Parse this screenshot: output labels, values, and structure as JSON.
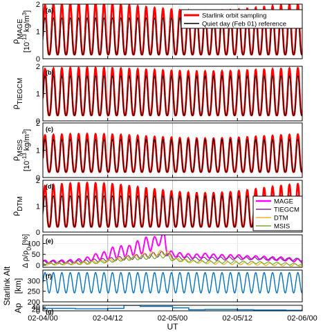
{
  "chart_data": {
    "type": "line",
    "xlabel": "UT",
    "x_ticks": [
      "02-04/00",
      "02-04/12",
      "02-05/00",
      "02-05/12",
      "02-06/00"
    ],
    "x_range_hours": [
      0,
      48
    ],
    "vertical_reference_lines_hours": [
      12,
      24
    ],
    "grid": true,
    "legend_top": {
      "placement": "top-right",
      "entries": [
        {
          "label": "Starlink orbit sampling",
          "color": "#ff0000"
        },
        {
          "label": "Quiet day (Feb 01) reference",
          "color": "#000000"
        }
      ]
    },
    "legend_e": {
      "placement": "right",
      "entries": [
        {
          "label": "MAGE",
          "color": "#ff00ff"
        },
        {
          "label": "TIEGCM",
          "color": "#7e2f8e"
        },
        {
          "label": "DTM",
          "color": "#edb120"
        },
        {
          "label": "MSIS",
          "color": "#77ac30"
        }
      ]
    },
    "panels": [
      {
        "tag": "(a)",
        "ylabel": "ρ",
        "ylabel_sub": "MAGE",
        "ylabel_unit_prefix": "[10",
        "ylabel_unit_exp": "-13",
        "ylabel_unit_mid": " kg/m",
        "ylabel_unit_exp2": "3",
        "ylabel_unit_suffix": "]",
        "ylim": [
          0,
          2
        ],
        "yticks": [
          "0",
          "1",
          "2"
        ],
        "orbit_period_hours": 1.56,
        "series": [
          {
            "label": "Starlink orbit sampling",
            "color": "#ff0000",
            "min": 0.15,
            "max_range": [
              1.6,
              2.05
            ]
          },
          {
            "label": "Quiet day (Feb 01) reference",
            "color": "#000000",
            "min": 0.15,
            "max": 1.5
          }
        ]
      },
      {
        "tag": "(b)",
        "ylabel": "ρ",
        "ylabel_sub": "TIEGCM",
        "ylabel_unit_prefix": "",
        "ylabel_unit_exp": "",
        "ylabel_unit_mid": "",
        "ylabel_unit_exp2": "",
        "ylabel_unit_suffix": "",
        "ylim": [
          0,
          2
        ],
        "yticks": [
          "0",
          "1",
          "2"
        ],
        "orbit_period_hours": 1.56,
        "series": [
          {
            "label": "Starlink orbit sampling",
            "color": "#ff0000",
            "min": 0.2,
            "max_range": [
              1.75,
              1.95
            ]
          },
          {
            "label": "Quiet day (Feb 01) reference",
            "color": "#000000",
            "min": 0.2,
            "max": 1.65
          }
        ]
      },
      {
        "tag": "(c)",
        "ylabel": "ρ",
        "ylabel_sub": "MSIS",
        "ylabel_unit_prefix": "[10",
        "ylabel_unit_exp": "-13",
        "ylabel_unit_mid": " kg/m",
        "ylabel_unit_exp2": "3",
        "ylabel_unit_suffix": "]",
        "ylim": [
          0,
          2
        ],
        "yticks": [
          "0",
          "1",
          "2"
        ],
        "orbit_period_hours": 1.56,
        "series": [
          {
            "label": "Starlink orbit sampling",
            "color": "#ff0000",
            "min": 0.2,
            "max_range": [
              1.35,
              1.6
            ]
          },
          {
            "label": "Quiet day (Feb 01) reference",
            "color": "#000000",
            "min": 0.2,
            "max": 1.4
          }
        ]
      },
      {
        "tag": "(d)",
        "ylabel": "ρ",
        "ylabel_sub": "DTM",
        "ylabel_unit_prefix": "",
        "ylabel_unit_exp": "",
        "ylabel_unit_mid": "",
        "ylabel_unit_exp2": "",
        "ylabel_unit_suffix": "",
        "ylim": [
          0,
          2
        ],
        "yticks": [
          "0",
          "1",
          "2"
        ],
        "orbit_period_hours": 1.56,
        "series": [
          {
            "label": "Starlink orbit sampling",
            "color": "#ff0000",
            "min": 0.2,
            "max_range": [
              1.3,
              1.9
            ]
          },
          {
            "label": "Quiet day (Feb 01) reference",
            "color": "#000000",
            "min": 0.2,
            "max": 1.4
          }
        ]
      },
      {
        "tag": "(e)",
        "ylabel": "Δ ρ/ρ",
        "ylabel_sub": "0",
        "ylabel_unit_suffix": " [%]",
        "ylim": [
          -10,
          140
        ],
        "yticks": [
          "0",
          "50",
          "100"
        ],
        "series": [
          {
            "label": "MAGE",
            "color": "#ff00ff",
            "x": [
              0,
              2,
              4,
              6,
              8,
              10,
              12,
              13,
              14,
              15,
              16,
              17,
              18,
              19,
              20,
              21,
              22,
              22.5,
              23,
              24,
              26,
              28,
              30,
              32,
              34,
              36,
              38,
              40,
              42,
              44,
              46,
              48
            ],
            "base": [
              15,
              15,
              16,
              18,
              25,
              40,
              45,
              60,
              55,
              70,
              60,
              85,
              75,
              100,
              95,
              110,
              120,
              135,
              60,
              50,
              45,
              40,
              45,
              40,
              38,
              40,
              35,
              35,
              30,
              30,
              25,
              20
            ],
            "amp": [
              8,
              8,
              8,
              8,
              10,
              15,
              20,
              25,
              25,
              30,
              30,
              35,
              30,
              30,
              30,
              25,
              25,
              20,
              15,
              12,
              10,
              10,
              10,
              10,
              10,
              8,
              8,
              8,
              8,
              8,
              8,
              8
            ]
          },
          {
            "label": "TIEGCM",
            "color": "#7e2f8e",
            "x": [
              0,
              4,
              8,
              12,
              16,
              20,
              23,
              24,
              28,
              32,
              36,
              40,
              44,
              48
            ],
            "base": [
              15,
              15,
              18,
              25,
              35,
              45,
              55,
              35,
              30,
              30,
              32,
              30,
              28,
              25
            ],
            "amp": [
              6,
              6,
              7,
              8,
              10,
              12,
              12,
              8,
              7,
              7,
              7,
              6,
              6,
              6
            ]
          },
          {
            "label": "DTM",
            "color": "#edb120",
            "x": [
              0,
              4,
              8,
              12,
              16,
              20,
              23,
              24,
              28,
              32,
              36,
              40,
              44,
              48
            ],
            "base": [
              5,
              6,
              10,
              20,
              35,
              50,
              60,
              30,
              15,
              10,
              8,
              5,
              2,
              0
            ],
            "amp": [
              6,
              6,
              7,
              8,
              10,
              12,
              12,
              8,
              6,
              6,
              6,
              6,
              6,
              6
            ]
          },
          {
            "label": "MSIS",
            "color": "#77ac30",
            "x": [
              0,
              4,
              8,
              12,
              16,
              20,
              23,
              24,
              28,
              32,
              36,
              40,
              44,
              48
            ],
            "base": [
              8,
              8,
              10,
              18,
              30,
              38,
              45,
              25,
              18,
              15,
              14,
              12,
              8,
              2
            ],
            "amp": [
              5,
              5,
              6,
              7,
              8,
              10,
              10,
              7,
              6,
              6,
              6,
              5,
              5,
              5
            ]
          }
        ]
      },
      {
        "tag": "(f)",
        "ylabel": "Starlink Alt",
        "ylabel_unit_suffix": "[km]",
        "ylim": [
          200,
          350
        ],
        "yticks": [
          "200",
          "250",
          "300"
        ],
        "series": [
          {
            "label": "Starlink altitude",
            "color": "#0072bd",
            "center": 290,
            "amplitude": 48,
            "period_hours": 1.56
          }
        ]
      },
      {
        "tag": "(g)",
        "ylabel": "Ap",
        "ylim": [
          0,
          60
        ],
        "yticks": [
          "0",
          "20",
          "40"
        ],
        "series": [
          {
            "label": "Ap",
            "color": "#0072bd",
            "step": true,
            "x": [
              0,
              3,
              6,
              9,
              12,
              15,
              18,
              21,
              24,
              27,
              30,
              33,
              36,
              39,
              42,
              45,
              48
            ],
            "values": [
              27,
              27,
              22,
              22,
              27,
              62,
              48,
              48,
              32,
              12,
              15,
              15,
              12,
              9,
              9,
              6,
              20
            ]
          }
        ]
      }
    ]
  }
}
